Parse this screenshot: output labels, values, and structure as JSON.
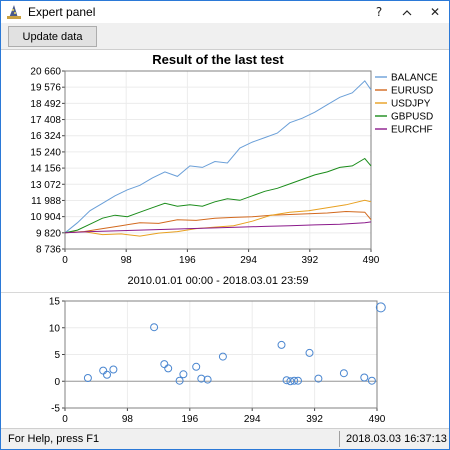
{
  "window": {
    "title": "Expert panel",
    "controls": {
      "help": "?",
      "minimize": "^",
      "close": "✕"
    },
    "app_icon": "wizard-hat-icon"
  },
  "toolbar": {
    "update_label": "Update data"
  },
  "status": {
    "left": "For Help, press F1",
    "right": "2018.03.03 16:37:13"
  },
  "chart_data": [
    {
      "type": "line",
      "title": "Result of the last test",
      "xlabel": "2010.01.01 00:00 - 2018.03.01 23:59",
      "ylabel": "",
      "xlim": [
        0,
        490
      ],
      "ylim": [
        8736,
        20660
      ],
      "x_ticks": [
        "0",
        "98",
        "196",
        "294",
        "392",
        "490"
      ],
      "y_ticks": [
        "8 736",
        "9 820",
        "10 904",
        "11 988",
        "13 072",
        "14 156",
        "15 240",
        "16 324",
        "17 408",
        "18 492",
        "19 576",
        "20 660"
      ],
      "legend_position": "right",
      "grid": true,
      "series": [
        {
          "name": "BALANCE",
          "color": "#6a9fd8",
          "points": [
            [
              0,
              9820
            ],
            [
              20,
              10500
            ],
            [
              40,
              11300
            ],
            [
              60,
              11800
            ],
            [
              80,
              12300
            ],
            [
              100,
              12700
            ],
            [
              120,
              13000
            ],
            [
              140,
              13500
            ],
            [
              160,
              13900
            ],
            [
              180,
              13600
            ],
            [
              200,
              14300
            ],
            [
              220,
              14200
            ],
            [
              240,
              14600
            ],
            [
              260,
              14500
            ],
            [
              280,
              15500
            ],
            [
              300,
              15900
            ],
            [
              320,
              16200
            ],
            [
              340,
              16500
            ],
            [
              360,
              17200
            ],
            [
              380,
              17500
            ],
            [
              400,
              17900
            ],
            [
              420,
              18400
            ],
            [
              440,
              18900
            ],
            [
              460,
              19200
            ],
            [
              480,
              20000
            ],
            [
              490,
              19400
            ]
          ]
        },
        {
          "name": "EURUSD",
          "color": "#d2691e",
          "points": [
            [
              0,
              9820
            ],
            [
              30,
              9900
            ],
            [
              60,
              10100
            ],
            [
              90,
              10300
            ],
            [
              120,
              10500
            ],
            [
              150,
              10450
            ],
            [
              180,
              10700
            ],
            [
              210,
              10650
            ],
            [
              240,
              10800
            ],
            [
              270,
              10850
            ],
            [
              300,
              10900
            ],
            [
              330,
              11000
            ],
            [
              360,
              11050
            ],
            [
              390,
              11100
            ],
            [
              420,
              11150
            ],
            [
              450,
              11250
            ],
            [
              480,
              11200
            ],
            [
              490,
              10700
            ]
          ]
        },
        {
          "name": "USDJPY",
          "color": "#e8a020",
          "points": [
            [
              0,
              9820
            ],
            [
              30,
              9900
            ],
            [
              60,
              9700
            ],
            [
              90,
              9750
            ],
            [
              120,
              9600
            ],
            [
              150,
              9800
            ],
            [
              180,
              9900
            ],
            [
              210,
              10100
            ],
            [
              240,
              10200
            ],
            [
              270,
              10300
            ],
            [
              300,
              10600
            ],
            [
              330,
              11000
            ],
            [
              360,
              11200
            ],
            [
              390,
              11300
            ],
            [
              420,
              11500
            ],
            [
              450,
              11700
            ],
            [
              480,
              12000
            ],
            [
              490,
              11900
            ]
          ]
        },
        {
          "name": "GBPUSD",
          "color": "#1a8c1a",
          "points": [
            [
              0,
              9820
            ],
            [
              20,
              10000
            ],
            [
              40,
              10400
            ],
            [
              60,
              10800
            ],
            [
              80,
              11000
            ],
            [
              100,
              10900
            ],
            [
              120,
              11200
            ],
            [
              140,
              11500
            ],
            [
              160,
              11800
            ],
            [
              180,
              11600
            ],
            [
              200,
              11700
            ],
            [
              220,
              11600
            ],
            [
              240,
              11900
            ],
            [
              260,
              12100
            ],
            [
              280,
              12000
            ],
            [
              300,
              12300
            ],
            [
              320,
              12600
            ],
            [
              340,
              12800
            ],
            [
              360,
              13100
            ],
            [
              380,
              13400
            ],
            [
              400,
              13700
            ],
            [
              420,
              13900
            ],
            [
              440,
              14200
            ],
            [
              460,
              14300
            ],
            [
              480,
              14800
            ],
            [
              490,
              14300
            ]
          ]
        },
        {
          "name": "EURCHF",
          "color": "#8b1a8b",
          "points": [
            [
              0,
              9820
            ],
            [
              40,
              9900
            ],
            [
              80,
              9950
            ],
            [
              120,
              10000
            ],
            [
              160,
              10050
            ],
            [
              200,
              10100
            ],
            [
              240,
              10150
            ],
            [
              280,
              10200
            ],
            [
              320,
              10250
            ],
            [
              360,
              10300
            ],
            [
              400,
              10350
            ],
            [
              440,
              10400
            ],
            [
              480,
              10500
            ],
            [
              490,
              10550
            ]
          ]
        }
      ]
    },
    {
      "type": "scatter",
      "title": "",
      "xlabel": "",
      "ylabel": "",
      "xlim": [
        0,
        490
      ],
      "ylim": [
        -5,
        15
      ],
      "x_ticks": [
        "0",
        "98",
        "196",
        "294",
        "392",
        "490"
      ],
      "y_ticks": [
        "-5",
        "0",
        "5",
        "10",
        "15"
      ],
      "grid": true,
      "marker_color": "#4a86d0",
      "points": [
        [
          36,
          0.6
        ],
        [
          60,
          2.0
        ],
        [
          66,
          1.2
        ],
        [
          76,
          2.2
        ],
        [
          140,
          10.1
        ],
        [
          156,
          3.2
        ],
        [
          162,
          2.4
        ],
        [
          180,
          0.1
        ],
        [
          186,
          1.3
        ],
        [
          206,
          2.7
        ],
        [
          214,
          0.5
        ],
        [
          224,
          0.3
        ],
        [
          248,
          4.6
        ],
        [
          340,
          6.8
        ],
        [
          348,
          0.2
        ],
        [
          354,
          0.0
        ],
        [
          360,
          0.1
        ],
        [
          366,
          0.1
        ],
        [
          384,
          5.3
        ],
        [
          398,
          0.5
        ],
        [
          438,
          1.5
        ],
        [
          470,
          0.7
        ],
        [
          482,
          0.1
        ],
        [
          496,
          13.8
        ]
      ]
    }
  ]
}
